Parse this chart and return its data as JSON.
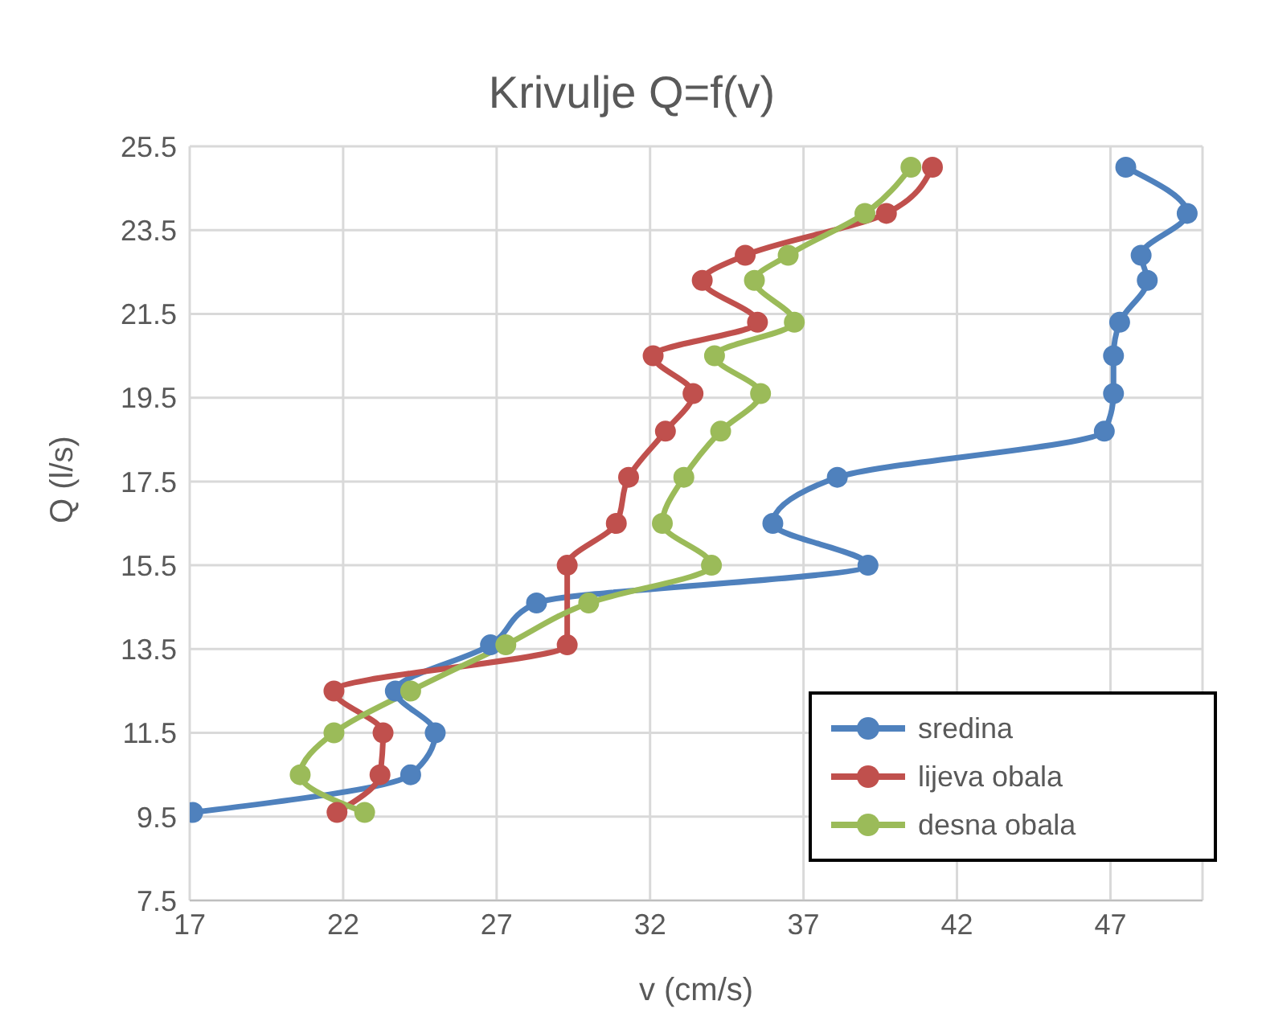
{
  "chart_data": {
    "type": "line",
    "title": "Krivulje Q=f(v)",
    "xlabel": "v (cm/s)",
    "ylabel": "Q (l/s)",
    "xlim": [
      17,
      50
    ],
    "xticks": [
      17,
      22,
      27,
      32,
      37,
      42,
      47
    ],
    "ylim": [
      7.5,
      25.5
    ],
    "yticks": [
      7.5,
      9.5,
      11.5,
      13.5,
      15.5,
      17.5,
      19.5,
      21.5,
      23.5,
      25.5
    ],
    "grid": true,
    "legend": "bottom right",
    "marker": "circle",
    "line_style": "solid",
    "series": [
      {
        "name": "sredina",
        "color": "#4f81bd",
        "x": [
          17.1,
          24.2,
          25.0,
          23.7,
          26.8,
          28.3,
          39.1,
          36.0,
          38.1,
          46.8,
          47.1,
          47.1,
          47.3,
          48.2,
          48.0,
          49.5,
          47.5
        ],
        "values": [
          9.6,
          10.5,
          11.5,
          12.5,
          13.6,
          14.6,
          15.5,
          16.5,
          17.6,
          18.7,
          19.6,
          20.5,
          21.3,
          22.3,
          22.9,
          23.9,
          25.0
        ]
      },
      {
        "name": "lijeva obala",
        "color": "#c0504d",
        "x": [
          21.8,
          23.2,
          23.3,
          21.7,
          29.3,
          29.3,
          30.9,
          31.3,
          32.5,
          33.4,
          32.1,
          35.5,
          33.7,
          35.1,
          39.7,
          41.2
        ],
        "values": [
          9.6,
          10.5,
          11.5,
          12.5,
          13.6,
          15.5,
          16.5,
          17.6,
          18.7,
          19.6,
          20.5,
          21.3,
          22.3,
          22.9,
          23.9,
          25.0
        ]
      },
      {
        "name": "desna obala",
        "color": "#9bbb59",
        "x": [
          22.7,
          20.6,
          21.7,
          24.2,
          27.3,
          30.0,
          34.0,
          32.4,
          33.1,
          34.3,
          35.6,
          34.1,
          36.7,
          35.4,
          36.5,
          39.0,
          40.5
        ],
        "values": [
          9.6,
          10.5,
          11.5,
          12.5,
          13.6,
          14.6,
          15.5,
          16.5,
          17.6,
          18.7,
          19.6,
          20.5,
          21.3,
          22.3,
          22.9,
          23.9,
          25.0
        ]
      }
    ]
  }
}
